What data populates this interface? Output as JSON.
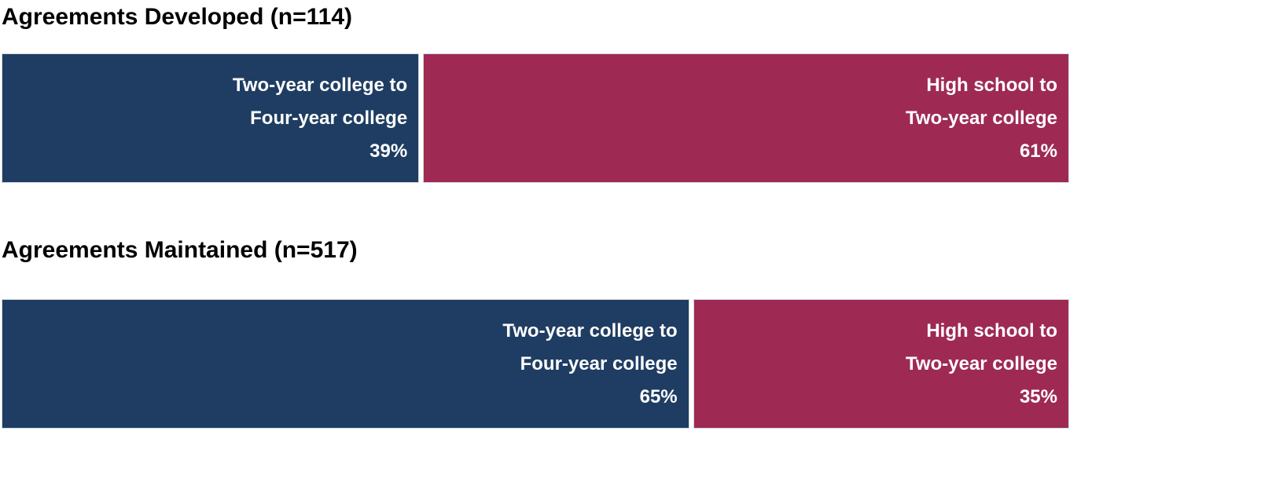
{
  "colors": {
    "navy_segment": "#1F3D62",
    "crimson_segment": "#9E2A54",
    "bar_label_text": "#ffffff",
    "title_text": "#000000",
    "background": "#ffffff"
  },
  "chart_data": [
    {
      "type": "bar",
      "orientation": "horizontal",
      "stacked": true,
      "title": "Agreements Developed (n=114)",
      "n": 114,
      "unit": "%",
      "axis_range": [
        0,
        100
      ],
      "grid": false,
      "legend": "labels inside segments",
      "segments": [
        {
          "name": "Two-year college to Four-year college",
          "label_line1": "Two-year college to",
          "label_line2": "Four-year college",
          "value": 39,
          "value_label": "39%",
          "color": "#1F3D62"
        },
        {
          "name": "High school to Two-year college",
          "label_line1": "High school to",
          "label_line2": "Two-year college",
          "value": 61,
          "value_label": "61%",
          "color": "#9E2A54"
        }
      ]
    },
    {
      "type": "bar",
      "orientation": "horizontal",
      "stacked": true,
      "title": "Agreements Maintained (n=517)",
      "n": 517,
      "unit": "%",
      "axis_range": [
        0,
        100
      ],
      "grid": false,
      "legend": "labels inside segments",
      "segments": [
        {
          "name": "Two-year college to Four-year college",
          "label_line1": "Two-year college to",
          "label_line2": "Four-year college",
          "value": 65,
          "value_label": "65%",
          "color": "#1F3D62"
        },
        {
          "name": "High school to Two-year college",
          "label_line1": "High school to",
          "label_line2": "Two-year college",
          "value": 35,
          "value_label": "35%",
          "color": "#9E2A54"
        }
      ]
    }
  ]
}
